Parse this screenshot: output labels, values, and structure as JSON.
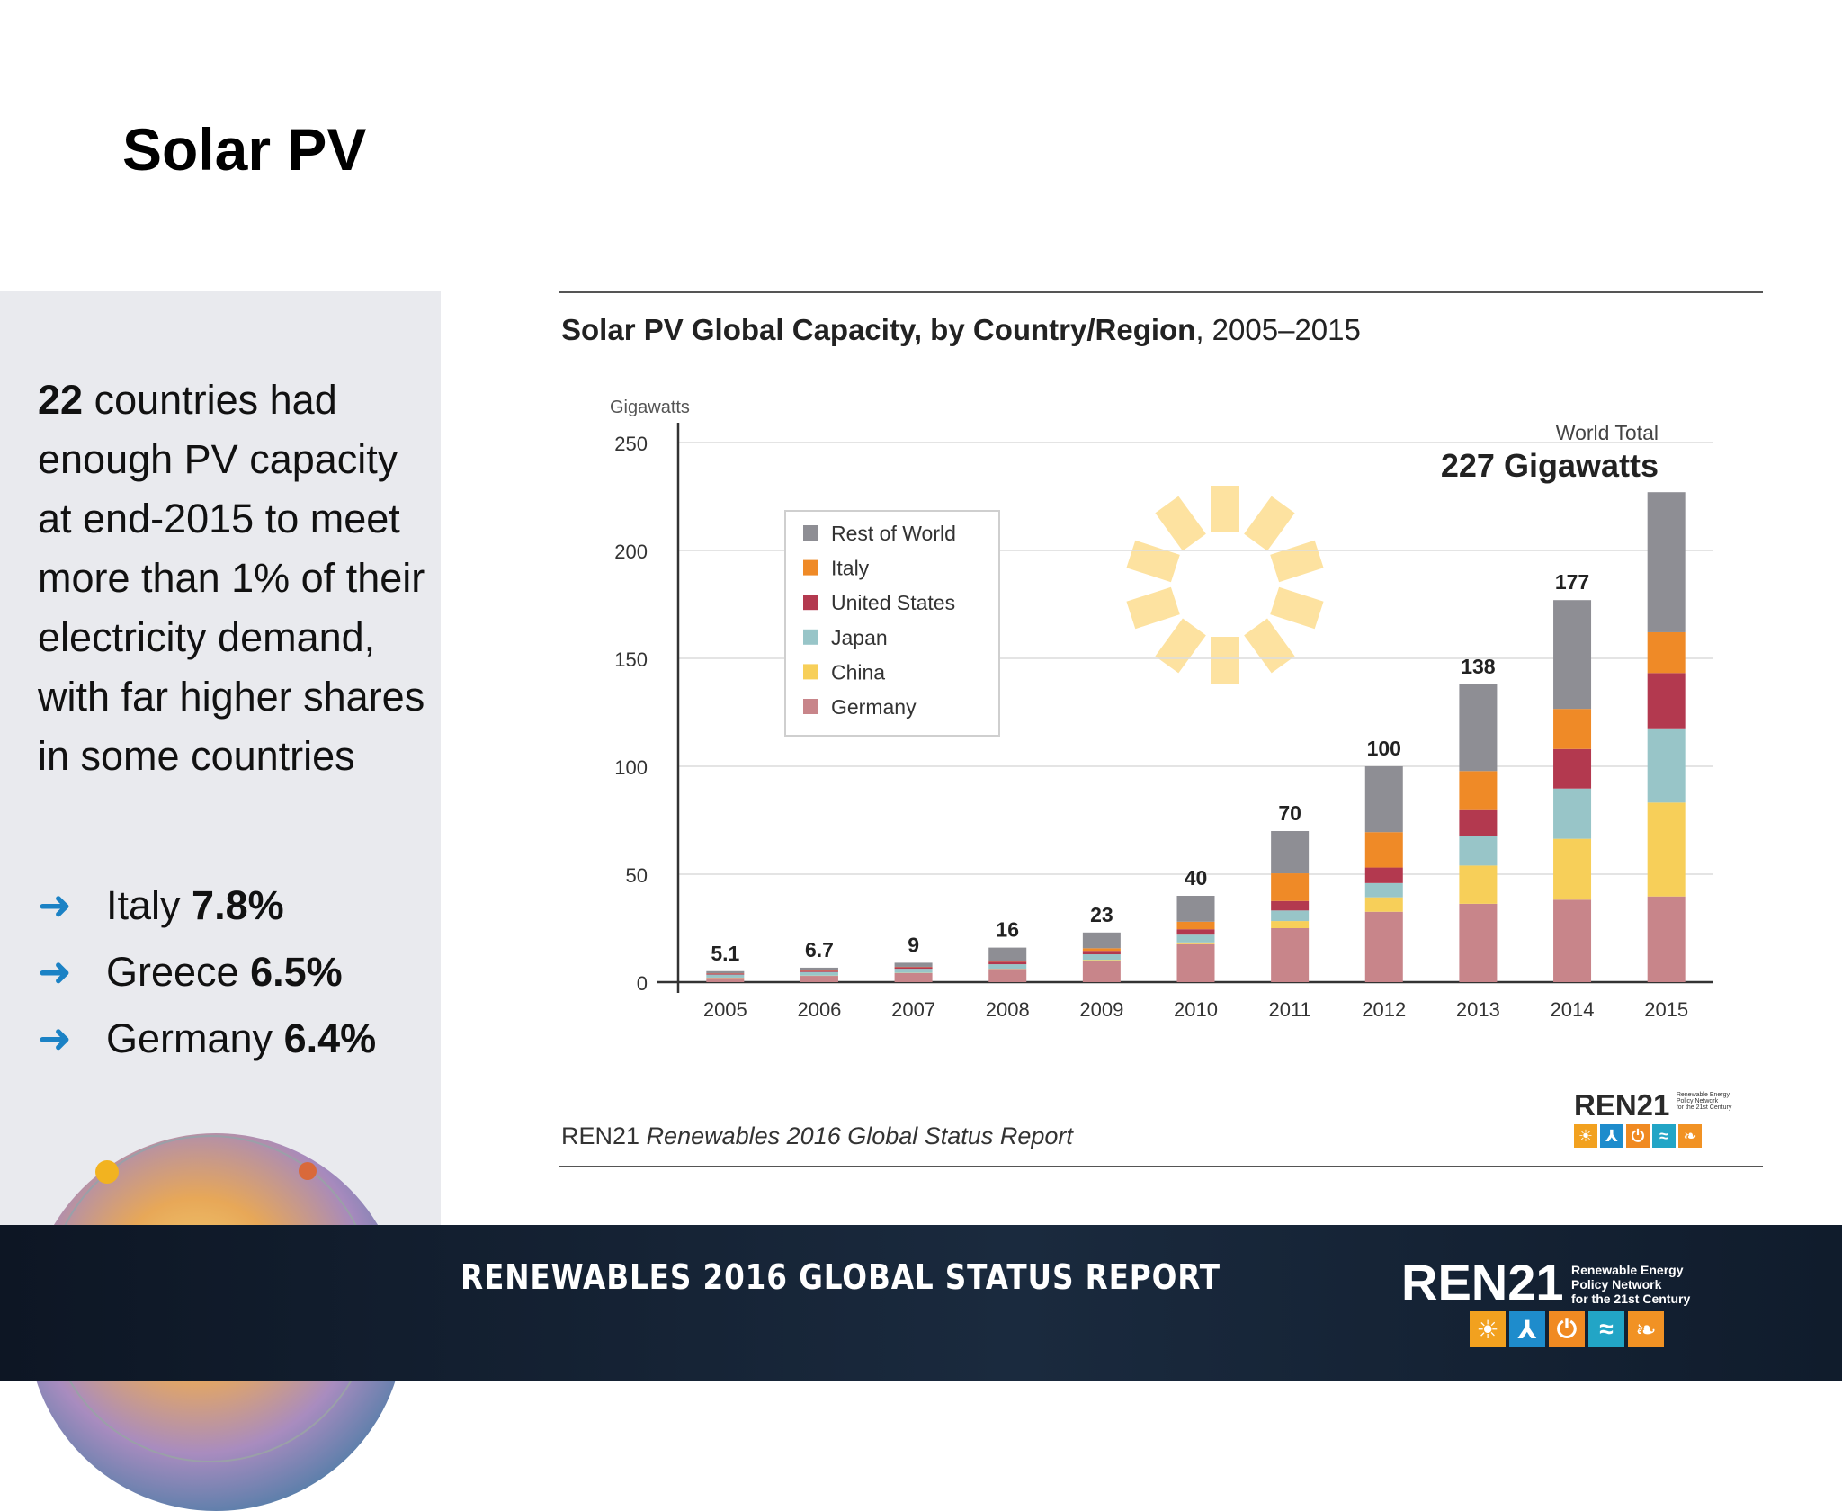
{
  "slide": {
    "title": "Solar PV",
    "intro_count": "22",
    "intro_text": " countries had enough PV capacity at end-2015 to meet more than 1% of their electricity demand, with far higher shares in some countries",
    "bullets": [
      {
        "arrow": "➜",
        "country": "Italy",
        "value": "7.8%"
      },
      {
        "arrow": "➜",
        "country": "Greece",
        "value": "6.5%"
      },
      {
        "arrow": "➜",
        "country": "Germany",
        "value": "6.4%"
      }
    ]
  },
  "chart_header": {
    "title_bold": "Solar PV Global Capacity, by Country/Region",
    "title_rest": ", 2005–2015"
  },
  "chart_data": {
    "type": "bar",
    "stacked": true,
    "ylabel": "Gigawatts",
    "ylim": [
      0,
      250
    ],
    "yticks": [
      0,
      50,
      100,
      150,
      200,
      250
    ],
    "grid": true,
    "legend_position": "top-left",
    "categories": [
      "2005",
      "2006",
      "2007",
      "2008",
      "2009",
      "2010",
      "2011",
      "2012",
      "2013",
      "2014",
      "2015"
    ],
    "totals": [
      5.1,
      6.7,
      9,
      16,
      23,
      40,
      70,
      100,
      138,
      177,
      227
    ],
    "total_labels": [
      "5.1",
      "6.7",
      "9",
      "16",
      "23",
      "40",
      "70",
      "100",
      "138",
      "177",
      ""
    ],
    "series": [
      {
        "name": "Germany",
        "color": "#c8858a",
        "values": [
          2.0,
          2.9,
          4.2,
          6.1,
          10.0,
          17.6,
          25.0,
          32.6,
          36.3,
          38.2,
          39.7
        ]
      },
      {
        "name": "China",
        "color": "#f7cf59",
        "values": [
          0.1,
          0.1,
          0.1,
          0.1,
          0.3,
          0.8,
          3.3,
          6.7,
          17.7,
          28.2,
          43.5
        ]
      },
      {
        "name": "Japan",
        "color": "#98c5c8",
        "values": [
          1.4,
          1.7,
          1.9,
          2.1,
          2.6,
          3.6,
          4.9,
          6.6,
          13.6,
          23.3,
          34.4
        ]
      },
      {
        "name": "United States",
        "color": "#b3394f",
        "values": [
          0.5,
          0.6,
          0.8,
          1.2,
          1.6,
          2.5,
          4.4,
          7.2,
          12.1,
          18.3,
          25.6
        ]
      },
      {
        "name": "Italy",
        "color": "#ef8a27",
        "values": [
          0.1,
          0.1,
          0.1,
          0.4,
          1.2,
          3.5,
          12.8,
          16.4,
          18.1,
          18.6,
          18.9
        ]
      },
      {
        "name": "Rest of World",
        "color": "#8e8e94",
        "values": [
          1.0,
          1.3,
          1.9,
          6.1,
          7.3,
          12.0,
          19.6,
          30.5,
          40.2,
          50.4,
          64.9
        ]
      }
    ],
    "legend_order": [
      "Rest of World",
      "Italy",
      "United States",
      "Japan",
      "China",
      "Germany"
    ],
    "annotation": {
      "label": "World Total",
      "value": "227 Gigawatts"
    }
  },
  "source": {
    "org": "REN21",
    "report": "Renewables 2016 Global Status Report"
  },
  "footer": {
    "report_title": "RENEWABLES 2016 GLOBAL STATUS REPORT",
    "logo_word": "REN21",
    "logo_tag": [
      "Renewable Energy",
      "Policy Network",
      "for the 21st Century"
    ],
    "tile_icons": [
      {
        "name": "sun-icon",
        "glyph": "☀",
        "color": "#f2a11f"
      },
      {
        "name": "wind-icon",
        "glyph": "⅄",
        "color": "#1e8ccc"
      },
      {
        "name": "power-icon",
        "glyph": "⏻",
        "color": "#f08a22"
      },
      {
        "name": "water-icon",
        "glyph": "≈",
        "color": "#22a5c6"
      },
      {
        "name": "leaf-icon",
        "glyph": "❧",
        "color": "#f19224"
      }
    ]
  }
}
